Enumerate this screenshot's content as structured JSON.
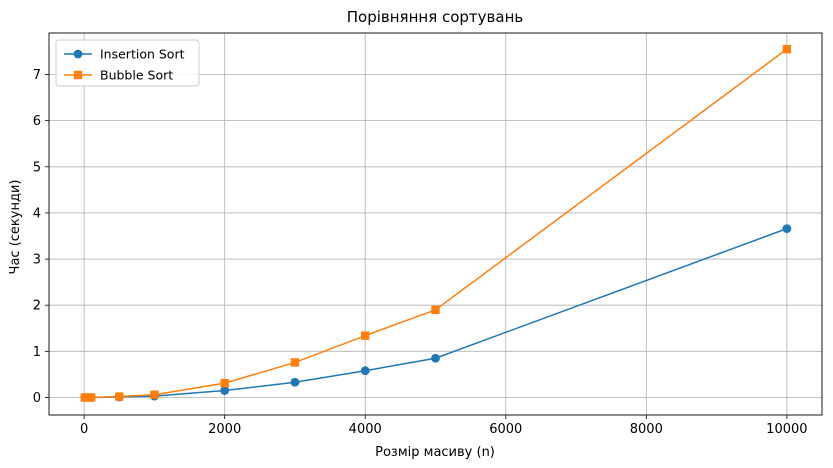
{
  "chart_data": {
    "type": "line",
    "title": "Порівняння сортувань",
    "xlabel": "Розмір масиву (n)",
    "ylabel": "Час (секунди)",
    "xlim": [
      -500,
      10500
    ],
    "ylim": [
      -0.38,
      7.9
    ],
    "xticks": [
      0,
      2000,
      4000,
      6000,
      8000,
      10000
    ],
    "yticks": [
      0,
      1,
      2,
      3,
      4,
      5,
      6,
      7
    ],
    "grid": true,
    "legend": "top-left",
    "x": [
      10,
      100,
      500,
      1000,
      2000,
      3000,
      4000,
      5000,
      10000
    ],
    "series": [
      {
        "name": "Insertion Sort",
        "color": "#1f77b4",
        "marker": "circle",
        "values": [
          0.0,
          0.0,
          0.01,
          0.03,
          0.15,
          0.33,
          0.58,
          0.85,
          3.66
        ]
      },
      {
        "name": "Bubble Sort",
        "color": "#ff7f0e",
        "marker": "square",
        "values": [
          0.0,
          0.0,
          0.02,
          0.06,
          0.31,
          0.76,
          1.34,
          1.9,
          7.55
        ]
      }
    ]
  }
}
